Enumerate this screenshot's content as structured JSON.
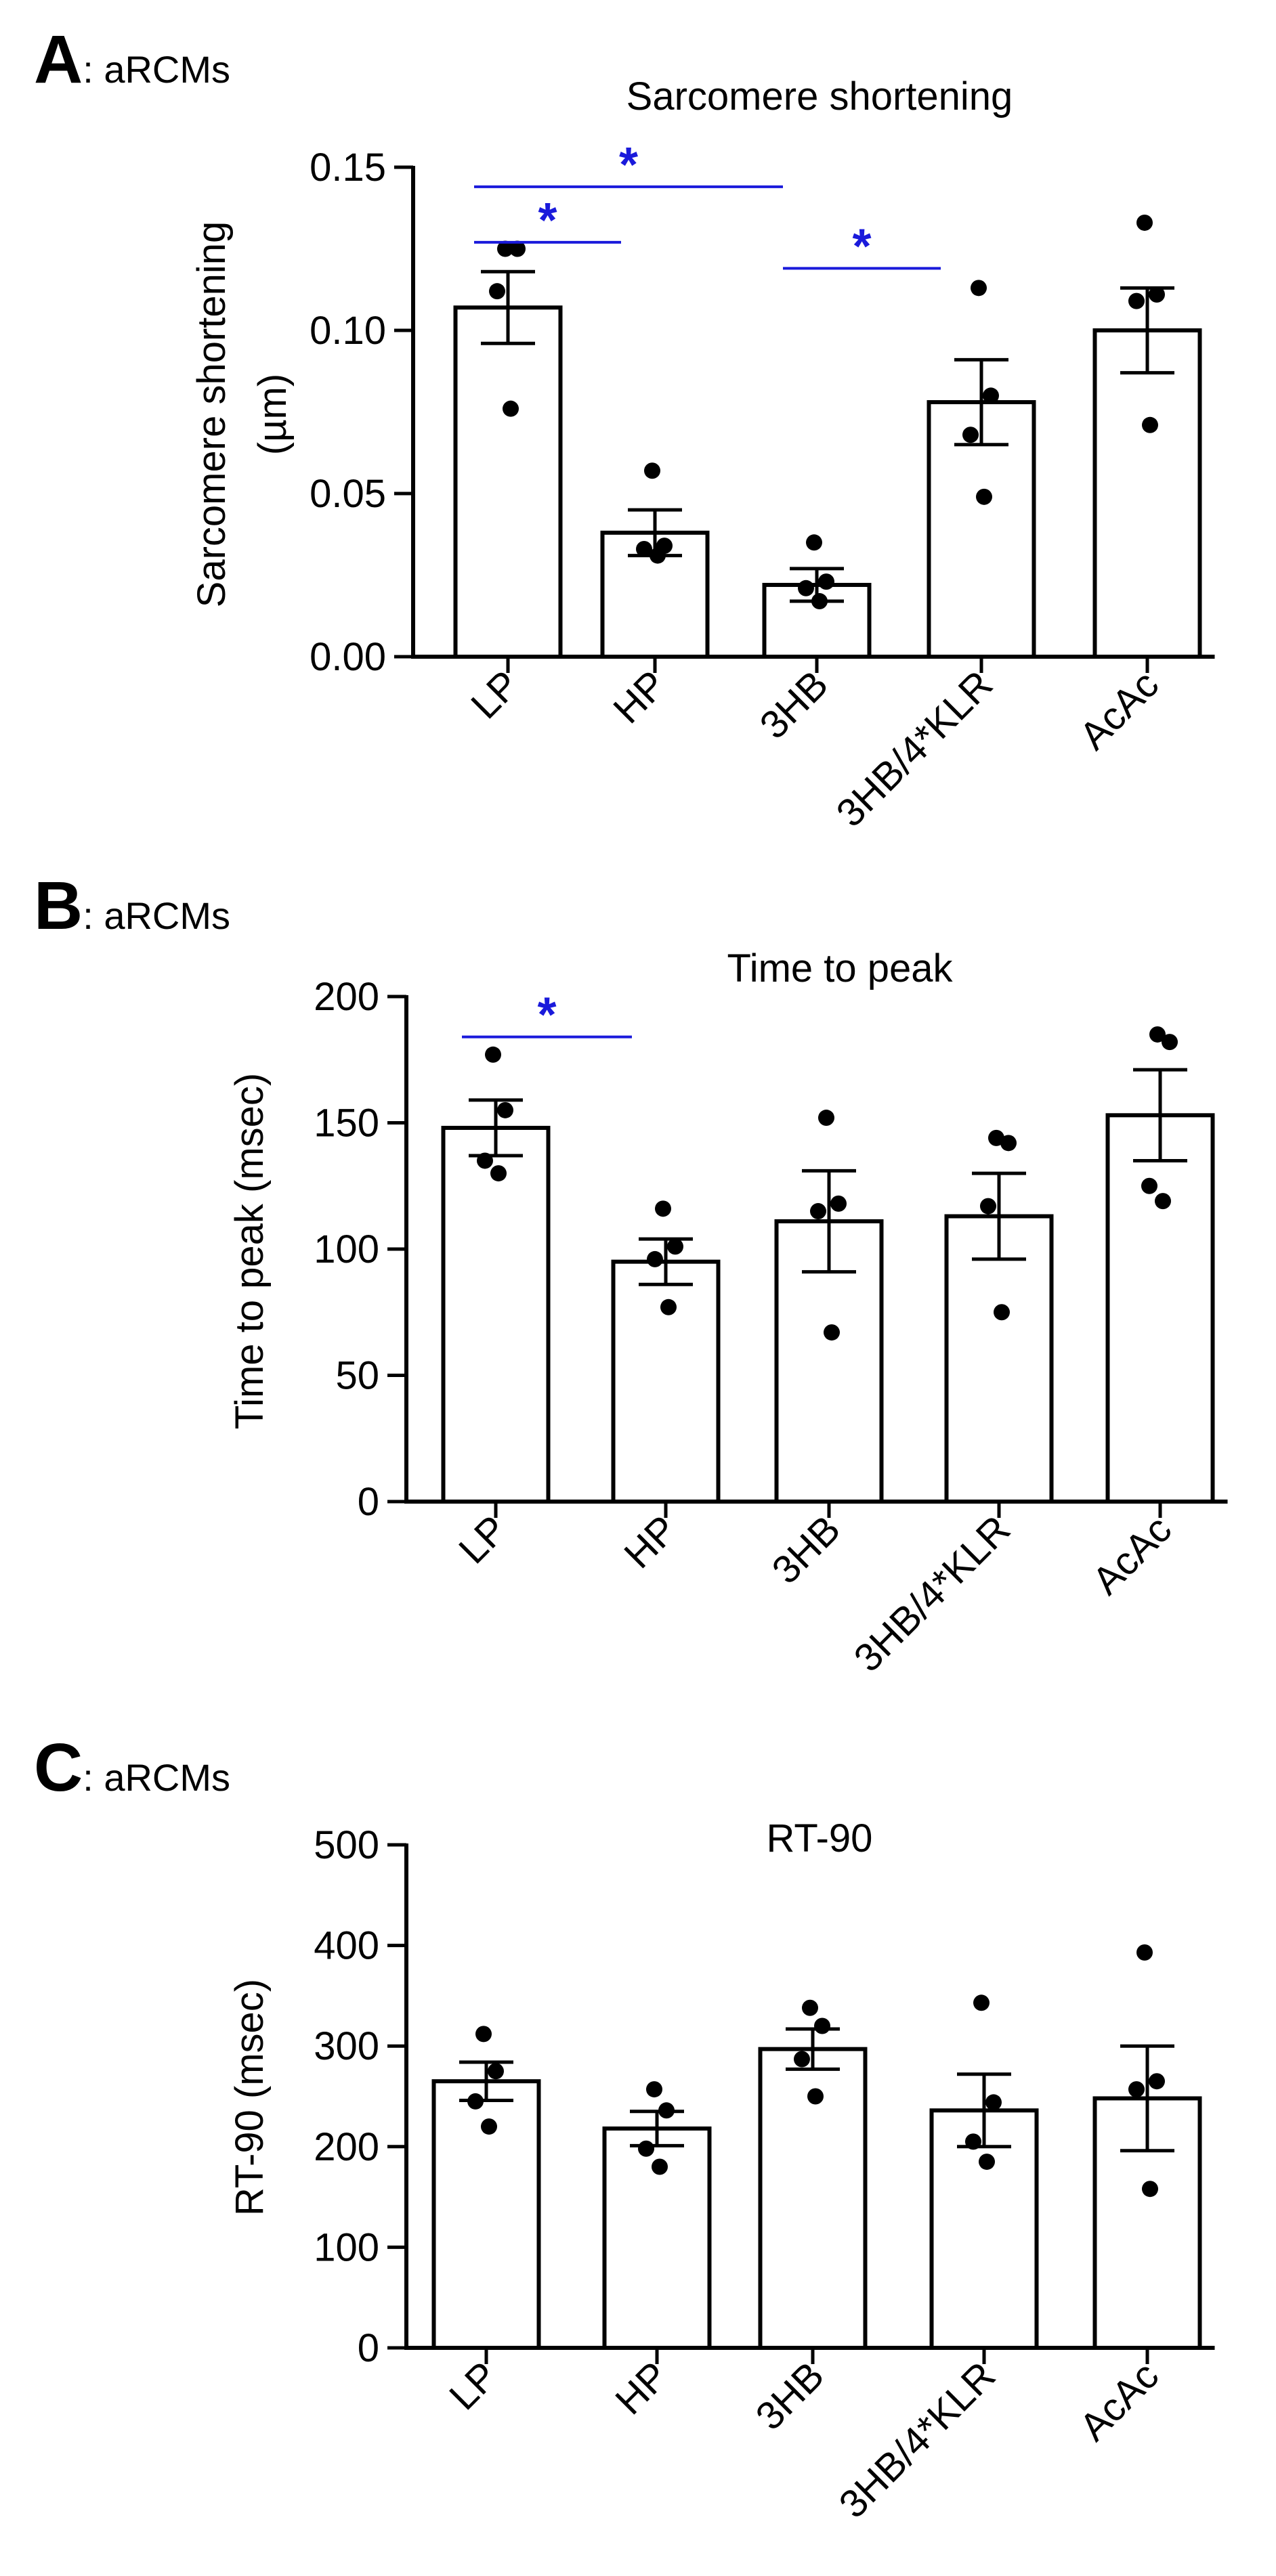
{
  "chart_data": [
    {
      "type": "bar",
      "panel_label": "A",
      "panel_suffix": ": aRCMs",
      "title": "Sarcomere shortening",
      "ylabel_lines": [
        "Sarcomere shortening",
        "(µm)"
      ],
      "categories": [
        "LP",
        "HP",
        "3HB",
        "3HB/4*KLR",
        "AcAc"
      ],
      "values": [
        0.107,
        0.038,
        0.022,
        0.078,
        0.1
      ],
      "sem": [
        0.011,
        0.007,
        0.005,
        0.013,
        0.013
      ],
      "points": [
        [
          0.125,
          0.125,
          0.112,
          0.076
        ],
        [
          0.057,
          0.034,
          0.033,
          0.031
        ],
        [
          0.035,
          0.023,
          0.021,
          0.017
        ],
        [
          0.113,
          0.08,
          0.068,
          0.049
        ],
        [
          0.133,
          0.111,
          0.109,
          0.071
        ]
      ],
      "ylim": [
        0,
        0.15
      ],
      "yticks": [
        "0.00",
        "0.05",
        "0.10",
        "0.15"
      ],
      "ytick_values": [
        0,
        0.05,
        0.1,
        0.15
      ],
      "significance": [
        {
          "from": 0,
          "to": 2,
          "label": "*",
          "y": 0.144
        },
        {
          "from": 0,
          "to": 1,
          "label": "*",
          "y": 0.127
        },
        {
          "from": 3,
          "to": 2,
          "label": "*",
          "y": 0.119
        }
      ],
      "significance_color": "#1a1adb",
      "bar_fill": "#ffffff",
      "bar_stroke": "#000000",
      "point_color": "#000000"
    },
    {
      "type": "bar",
      "panel_label": "B",
      "panel_suffix": ": aRCMs",
      "title": "Time to peak",
      "ylabel_lines": [
        "Time to peak (msec)"
      ],
      "categories": [
        "LP",
        "HP",
        "3HB",
        "3HB/4*KLR",
        "AcAc"
      ],
      "values": [
        148,
        95,
        111,
        113,
        153
      ],
      "sem": [
        11,
        9,
        20,
        17,
        18
      ],
      "points": [
        [
          177,
          155,
          135,
          130
        ],
        [
          116,
          101,
          96,
          77
        ],
        [
          152,
          118,
          115,
          67
        ],
        [
          144,
          142,
          117,
          75
        ],
        [
          185,
          182,
          125,
          119
        ]
      ],
      "ylim": [
        0,
        200
      ],
      "yticks": [
        "0",
        "50",
        "100",
        "150",
        "200"
      ],
      "ytick_values": [
        0,
        50,
        100,
        150,
        200
      ],
      "significance": [
        {
          "from": 0,
          "to": 1,
          "label": "*",
          "y": 184
        }
      ],
      "significance_color": "#1a1adb",
      "bar_fill": "#ffffff",
      "bar_stroke": "#000000",
      "point_color": "#000000"
    },
    {
      "type": "bar",
      "panel_label": "C",
      "panel_suffix": ": aRCMs",
      "title": "RT-90",
      "ylabel_lines": [
        "RT-90 (msec)"
      ],
      "categories": [
        "LP",
        "HP",
        "3HB",
        "3HB/4*KLR",
        "AcAc"
      ],
      "values": [
        265,
        218,
        297,
        236,
        248
      ],
      "sem": [
        19,
        17,
        20,
        36,
        52
      ],
      "points": [
        [
          312,
          275,
          245,
          220
        ],
        [
          257,
          236,
          198,
          180
        ],
        [
          338,
          320,
          287,
          250
        ],
        [
          343,
          244,
          205,
          185
        ],
        [
          393,
          265,
          257,
          158
        ]
      ],
      "ylim": [
        0,
        500
      ],
      "yticks": [
        "0",
        "100",
        "200",
        "300",
        "400",
        "500"
      ],
      "ytick_values": [
        0,
        100,
        200,
        300,
        400,
        500
      ],
      "significance": [],
      "significance_color": "#1a1adb",
      "bar_fill": "#ffffff",
      "bar_stroke": "#000000",
      "point_color": "#000000"
    }
  ]
}
